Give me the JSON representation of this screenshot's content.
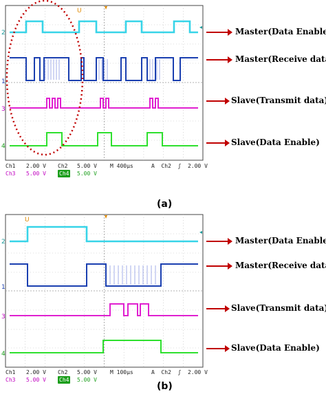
{
  "panels": [
    {
      "caption": "(a)",
      "status": {
        "ch1": "Ch1",
        "ch1_scale": "2.00 V",
        "ch2": "Ch2",
        "ch2_scale": "5.00 V",
        "timebase": "M 400µs",
        "trigger": "A  Ch2  ʃ  2.00 V",
        "ch3": "Ch3",
        "ch3_scale": "5.00 V",
        "ch4": "Ch4",
        "ch4_scale": "5.00 V"
      },
      "labels": [
        "Master(Data Enable)",
        "Master(Receive data)",
        "Slave(Transmit  data)",
        "Slave(Data Enable)"
      ],
      "channel_markers": [
        "2",
        "1",
        "3",
        "4"
      ],
      "colors": {
        "ch2": "#37d4e8",
        "ch1": "#1a3fb0",
        "ch3": "#e020d0",
        "ch4": "#2ee02e",
        "arrow": "#c00000"
      }
    },
    {
      "caption": "(b)",
      "status": {
        "ch1": "Ch1",
        "ch1_scale": "2.00 V",
        "ch2": "Ch2",
        "ch2_scale": "5.00 V",
        "timebase": "M 100µs",
        "trigger": "A  Ch2  ʃ  2.00 V",
        "ch3": "Ch3",
        "ch3_scale": "5.00 V",
        "ch4": "Ch4",
        "ch4_scale": "5.00 V"
      },
      "labels": [
        "Master(Data Enable)",
        "Master(Receive data)",
        "Slave(Transmit  data)",
        "Slave(Data Enable)"
      ],
      "channel_markers": [
        "2",
        "1",
        "3",
        "4"
      ],
      "colors": {
        "ch2": "#37d4e8",
        "ch1": "#1a3fb0",
        "ch3": "#e020d0",
        "ch4": "#2ee02e",
        "arrow": "#c00000"
      }
    }
  ]
}
